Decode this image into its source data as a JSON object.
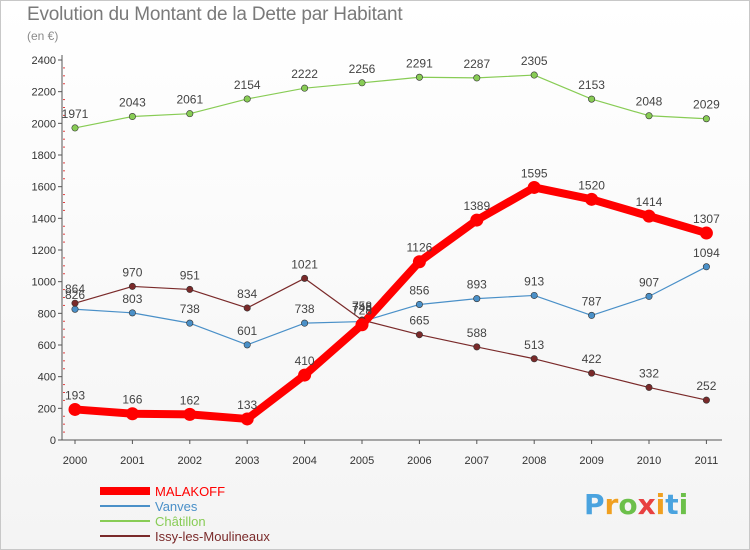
{
  "chart_data": {
    "type": "line",
    "title": "Evolution du Montant de la Dette par Habitant",
    "subtitle": "(en €)",
    "xlabel": "",
    "ylabel": "",
    "ylim": [
      0,
      2400
    ],
    "yticks": [
      0,
      200,
      400,
      600,
      800,
      1000,
      1200,
      1400,
      1600,
      1800,
      2000,
      2200,
      2400
    ],
    "categories": [
      "2000",
      "2001",
      "2002",
      "2003",
      "2004",
      "2005",
      "2006",
      "2007",
      "2008",
      "2009",
      "2010",
      "2011"
    ],
    "grid": false,
    "legend_position": "bottom-left",
    "series": [
      {
        "name": "MALAKOFF",
        "color": "#ff0000",
        "values": [
          193,
          166,
          162,
          133,
          410,
          728,
          1126,
          1389,
          1595,
          1520,
          1414,
          1307
        ]
      },
      {
        "name": "Vanves",
        "color": "#4a90c8",
        "values": [
          826,
          803,
          738,
          601,
          738,
          748,
          856,
          893,
          913,
          787,
          907,
          1094
        ]
      },
      {
        "name": "Châtillon",
        "color": "#88cc55",
        "values": [
          1971,
          2043,
          2061,
          2154,
          2222,
          2256,
          2291,
          2287,
          2305,
          2153,
          2048,
          2029
        ]
      },
      {
        "name": "Issy-les-Moulineaux",
        "color": "#7a2a2a",
        "values": [
          864,
          970,
          951,
          834,
          1021,
          758,
          665,
          588,
          513,
          422,
          332,
          252
        ]
      }
    ]
  },
  "logo": {
    "letters": [
      "P",
      "r",
      "o",
      "x",
      "i",
      "t",
      "i"
    ],
    "colors": [
      "#4aa3df",
      "#f0a020",
      "#6cc04a",
      "#e84040",
      "#f0a020",
      "#4aa3df",
      "#6cc04a"
    ]
  }
}
